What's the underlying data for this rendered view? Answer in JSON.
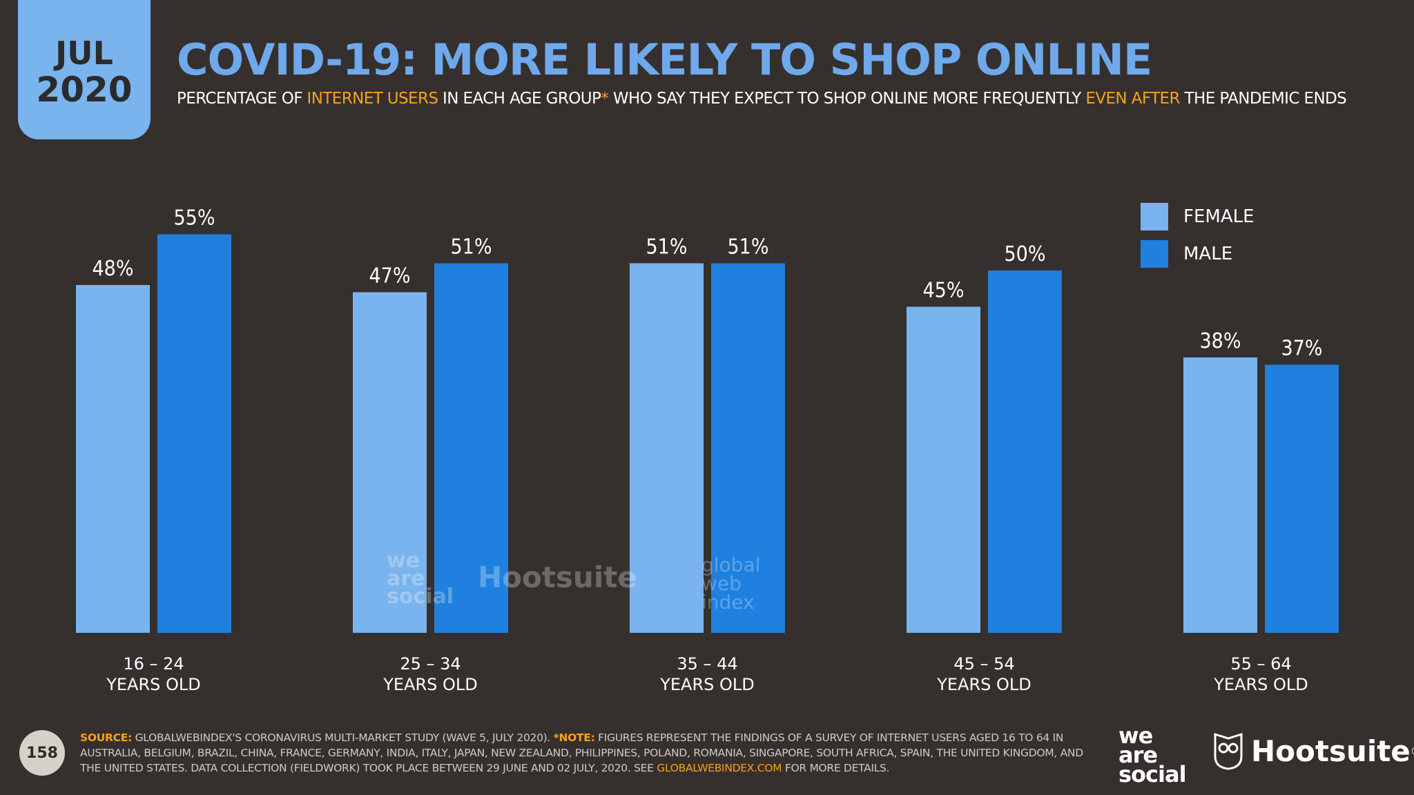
{
  "badge": {
    "month": "JUL",
    "year": "2020"
  },
  "header": {
    "title": "COVID-19: MORE LIKELY TO SHOP ONLINE",
    "subtitle_part1": "PERCENTAGE OF ",
    "subtitle_hl1": "INTERNET USERS",
    "subtitle_part2": " IN EACH AGE GROUP",
    "subtitle_hl2": "*",
    "subtitle_part3": " WHO SAY THEY EXPECT TO SHOP ONLINE MORE FREQUENTLY ",
    "subtitle_hl3": "EVEN AFTER",
    "subtitle_part4": " THE PANDEMIC ENDS"
  },
  "chart_data": {
    "type": "bar",
    "categories": [
      "16 – 24",
      "25 – 34",
      "35 – 44",
      "45 – 54",
      "55 – 64"
    ],
    "category_sublabel": "YEARS OLD",
    "series": [
      {
        "name": "FEMALE",
        "color": "#7ab4ee",
        "values": [
          48,
          47,
          51,
          45,
          38
        ]
      },
      {
        "name": "MALE",
        "color": "#1f80e0",
        "values": [
          55,
          51,
          51,
          50,
          37
        ]
      }
    ],
    "value_suffix": "%",
    "ylim": [
      0,
      100
    ],
    "grid": false,
    "legend_position": "top-right"
  },
  "watermarks": {
    "wearesocial": "we are social",
    "hootsuite": "Hootsuite",
    "gwi": "global web index"
  },
  "footer": {
    "page_number": "158",
    "source_label": "SOURCE:",
    "source_text": " GLOBALWEBINDEX'S CORONAVIRUS MULTI-MARKET STUDY (WAVE 5, JULY 2020). ",
    "note_label": "*NOTE:",
    "note_text": " FIGURES REPRESENT THE FINDINGS OF A SURVEY OF INTERNET USERS AGED 16 TO 64 IN AUSTRALIA, BELGIUM, BRAZIL, CHINA, FRANCE, GERMANY, INDIA, ITALY, JAPAN, NEW ZEALAND, PHILIPPINES, POLAND, ROMANIA, SINGAPORE, SOUTH AFRICA, SPAIN, THE UNITED KINGDOM, AND THE UNITED STATES. DATA COLLECTION (FIELDWORK) TOOK PLACE BETWEEN 29 JUNE AND 02 JULY, 2020. SEE ",
    "link_text": "GLOBALWEBINDEX.COM",
    "tail_text": " FOR MORE DETAILS."
  },
  "logos": {
    "wearesocial_line1": "we",
    "wearesocial_line2": "are",
    "wearesocial_line3": "social",
    "hootsuite": "Hootsuite",
    "hootsuite_mark": "®"
  }
}
